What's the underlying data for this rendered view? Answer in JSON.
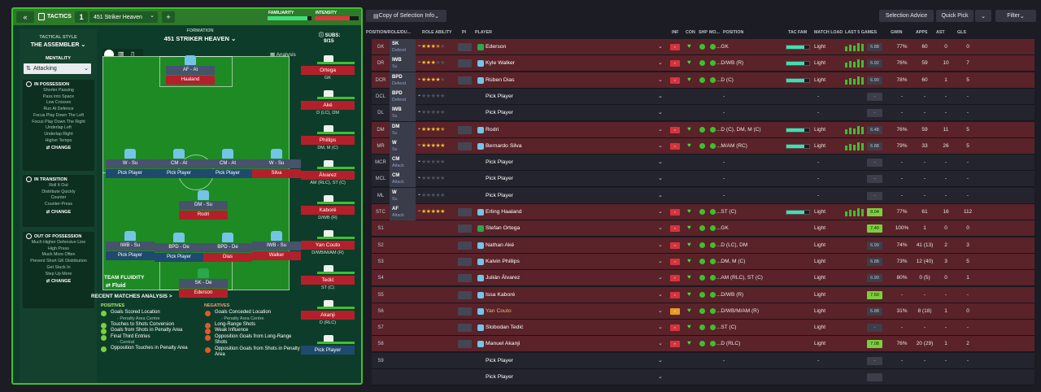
{
  "tactics": {
    "back_label": "«",
    "title": "TACTICS",
    "slot": "1",
    "tactic_name": "451 Striker Heaven",
    "add": "+",
    "familiarity_label": "FAMILIARITY",
    "intensity_label": "INTENSITY",
    "familiarity_pct": 0.9,
    "intensity_pct": 0.8
  },
  "sidebar": {
    "style_label": "TACTICAL STYLE",
    "style_name": "THE ASSEMBLER",
    "mentality_label": "MENTALITY",
    "mentality_value": "Attacking",
    "in_possession_label": "IN POSSESSION",
    "in_possession_items": [
      "Shorter Passing",
      "Pass into Space",
      "Low Crosses",
      "Run At Defence",
      "Focus Play Down The Left",
      "Focus Play Down The Right",
      "Underlap Left",
      "Underlap Right",
      "Higher Tempo"
    ],
    "in_transition_label": "IN TRANSITION",
    "in_transition_items": [
      "Roll It Out",
      "Distribute Quickly",
      "Counter",
      "Counter-Press"
    ],
    "out_possession_label": "OUT OF POSSESSION",
    "out_possession_items": [
      "Much Higher Defensive Line",
      "High Press",
      "Much More Often",
      "Prevent Short GK Distribution",
      "Get Stuck In",
      "Step Up More"
    ],
    "change_label": "CHANGE"
  },
  "formation": {
    "label": "FORMATION",
    "name": "451 STRIKER HEAVEN",
    "subs_label": "SUBS:",
    "subs_count": "9/15",
    "analysis_label": "Analysis",
    "fluidity_label": "TEAM FLUIDITY",
    "fluidity_value": "Fluid",
    "positions": [
      {
        "role": "AF - At",
        "name": "Haaland"
      },
      {
        "role": "W - Su",
        "name": "Pick Player"
      },
      {
        "role": "CM - At",
        "name": "Pick Player"
      },
      {
        "role": "CM - At",
        "name": "Pick Player"
      },
      {
        "role": "W - Su",
        "name": "Silva"
      },
      {
        "role": "DM - Su",
        "name": "Rodri"
      },
      {
        "role": "IWB - Su",
        "name": "Pick Player"
      },
      {
        "role": "BPD - De",
        "name": "Pick Player"
      },
      {
        "role": "BPD - De",
        "name": "Dias"
      },
      {
        "role": "IWB - Su",
        "name": "Walker"
      },
      {
        "role": "SK - De",
        "name": "Ederson"
      }
    ],
    "subs": [
      {
        "name": "Ortega",
        "pos": "GK"
      },
      {
        "name": "Aké",
        "pos": "D (LC), DM"
      },
      {
        "name": "Phillips",
        "pos": "DM, M (C)"
      },
      {
        "name": "Álvarez",
        "pos": "AM (RLC), ST (C)"
      },
      {
        "name": "Kaboré",
        "pos": "D/WB (R)"
      },
      {
        "name": "Yan Couto",
        "pos": "D/WB/M/AM (R)"
      },
      {
        "name": "Tedić",
        "pos": "ST (C)"
      },
      {
        "name": "Akanji",
        "pos": "D (RLC)"
      },
      {
        "name": "Pick Player",
        "pos": ""
      }
    ]
  },
  "analysis": {
    "title": "RECENT MATCHES ANALYSIS >",
    "positives_label": "POSITIVES",
    "negatives_label": "NEGATIVES",
    "positives": [
      {
        "text": "Goals Scored Location",
        "sub": "- Penalty Area Centre"
      },
      {
        "text": "Touches to Shots Conversion",
        "sub": ""
      },
      {
        "text": "Goals from Shots in Penalty Area",
        "sub": ""
      },
      {
        "text": "Final Third Entries",
        "sub": "- Central"
      },
      {
        "text": "Opposition Touches in Penalty Area",
        "sub": ""
      }
    ],
    "negatives": [
      {
        "text": "Goals Conceded Location",
        "sub": "- Penalty Area Centre"
      },
      {
        "text": "Long-Range Shots",
        "sub": ""
      },
      {
        "text": "Weak Influence",
        "sub": ""
      },
      {
        "text": "Opposition Goals from Long-Range Shots",
        "sub": ""
      },
      {
        "text": "Opposition Goals from Shots in Penalty Area",
        "sub": ""
      }
    ]
  },
  "right": {
    "copy_label": "Copy of Selection Info",
    "advice_label": "Selection Advice",
    "quickpick_label": "Quick Pick",
    "filter_label": "Filter",
    "headers": [
      "POSITION/ROLE/DU...",
      "ROLE ABILITY",
      "PI",
      "PLAYER",
      "INF",
      "CON",
      "SHP",
      "MO...",
      "POSITION",
      "TAC FAM",
      "MATCH LOAD",
      "LAST 5 GAMES",
      "GWIN",
      "APPS",
      "AST",
      "GLS"
    ],
    "rows": [
      {
        "pos": "GK",
        "role": "SK",
        "duty": "Defend",
        "stars": 3.5,
        "player": "Ederson",
        "posv": "...GK",
        "load": "Light",
        "rating": "6.88",
        "gwin": "77%",
        "apps": "60",
        "ast": "0",
        "gls": "0",
        "red": true,
        "gk": true
      },
      {
        "pos": "DR",
        "role": "IWB",
        "duty": "Su",
        "stars": 3,
        "player": "Kyle Walker",
        "posv": "...D/WB (R)",
        "load": "Light",
        "rating": "6.92",
        "gwin": "76%",
        "apps": "59",
        "ast": "10",
        "gls": "7",
        "red": true
      },
      {
        "pos": "DCR",
        "role": "BPD",
        "duty": "Defend",
        "stars": 4,
        "player": "Rúben Dias",
        "posv": "...D (C)",
        "load": "Light",
        "rating": "6.90",
        "gwin": "78%",
        "apps": "60",
        "ast": "1",
        "gls": "5",
        "red": true
      },
      {
        "pos": "DCL",
        "role": "BPD",
        "duty": "Defend",
        "stars": 0,
        "player": "Pick Player",
        "posv": "-",
        "load": "-",
        "rating": "-",
        "gwin": "-",
        "apps": "-",
        "ast": "-",
        "gls": "-",
        "red": false,
        "pick": true
      },
      {
        "pos": "DL",
        "role": "IWB",
        "duty": "Su",
        "stars": 0,
        "player": "Pick Player",
        "posv": "-",
        "load": "-",
        "rating": "-",
        "gwin": "-",
        "apps": "-",
        "ast": "-",
        "gls": "-",
        "red": false,
        "pick": true
      },
      {
        "pos": "DM",
        "role": "DM",
        "duty": "Su",
        "stars": 4.5,
        "player": "Rodri",
        "posv": "...D (C), DM, M (C)",
        "load": "Light",
        "rating": "6.48",
        "gwin": "76%",
        "apps": "59",
        "ast": "11",
        "gls": "5",
        "red": true
      },
      {
        "pos": "MR",
        "role": "W",
        "duty": "Su",
        "stars": 5,
        "player": "Bernardo Silva",
        "posv": "...M/AM (RC)",
        "load": "Light",
        "rating": "6.88",
        "gwin": "79%",
        "apps": "33",
        "ast": "26",
        "gls": "5",
        "red": true
      },
      {
        "pos": "MCR",
        "role": "CM",
        "duty": "Attack",
        "stars": 0,
        "player": "Pick Player",
        "posv": "-",
        "load": "-",
        "rating": "-",
        "gwin": "-",
        "apps": "-",
        "ast": "-",
        "gls": "-",
        "red": false,
        "pick": true
      },
      {
        "pos": "MCL",
        "role": "CM",
        "duty": "Attack",
        "stars": 0,
        "player": "Pick Player",
        "posv": "-",
        "load": "-",
        "rating": "-",
        "gwin": "-",
        "apps": "-",
        "ast": "-",
        "gls": "-",
        "red": false,
        "pick": true
      },
      {
        "pos": "ML",
        "role": "W",
        "duty": "Su",
        "stars": 0,
        "player": "Pick Player",
        "posv": "-",
        "load": "-",
        "rating": "-",
        "gwin": "-",
        "apps": "-",
        "ast": "-",
        "gls": "-",
        "red": false,
        "pick": true
      },
      {
        "pos": "STC",
        "role": "AF",
        "duty": "Attack",
        "stars": 5,
        "player": "Erling Haaland",
        "posv": "...ST (C)",
        "load": "Light",
        "rating": "8.04",
        "gwin": "77%",
        "apps": "61",
        "ast": "16",
        "gls": "112",
        "red": true,
        "good": true
      },
      {
        "pos": "S1",
        "role": "",
        "duty": "",
        "stars": 0,
        "player": "Stefan Ortega",
        "posv": "...GK",
        "load": "Light",
        "rating": "7.40",
        "gwin": "100%",
        "apps": "1",
        "ast": "0",
        "gls": "0",
        "red": true,
        "gk": true,
        "good": true
      },
      {
        "pos": "S2",
        "role": "",
        "duty": "",
        "stars": 0,
        "player": "Nathan Aké",
        "posv": "...D (LC), DM",
        "load": "Light",
        "rating": "6.99",
        "gwin": "74%",
        "apps": "41 (13)",
        "ast": "2",
        "gls": "3",
        "red": true
      },
      {
        "pos": "S3",
        "role": "",
        "duty": "",
        "stars": 0,
        "player": "Kalvin Phillips",
        "posv": "...DM, M (C)",
        "load": "Light",
        "rating": "6.88",
        "gwin": "73%",
        "apps": "12 (40)",
        "ast": "3",
        "gls": "5",
        "red": true
      },
      {
        "pos": "S4",
        "role": "",
        "duty": "",
        "stars": 0,
        "player": "Julián Álvarez",
        "posv": "...AM (RLC), ST (C)",
        "load": "Light",
        "rating": "6.90",
        "gwin": "80%",
        "apps": "0 (5)",
        "ast": "0",
        "gls": "1",
        "red": true
      },
      {
        "pos": "S5",
        "role": "",
        "duty": "",
        "stars": 0,
        "player": "Issa Kaboré",
        "posv": "...D/WB (R)",
        "load": "Light",
        "rating": "7.50",
        "gwin": "-",
        "apps": "-",
        "ast": "-",
        "gls": "-",
        "red": true,
        "good": true
      },
      {
        "pos": "S6",
        "role": "",
        "duty": "",
        "stars": 0,
        "player": "Yan Couto",
        "posv": "...D/WB/M/AM (R)",
        "load": "Light",
        "rating": "6.88",
        "gwin": "31%",
        "apps": "8 (18)",
        "ast": "1",
        "gls": "0",
        "red": true,
        "yel": true
      },
      {
        "pos": "S7",
        "role": "",
        "duty": "",
        "stars": 0,
        "player": "Slobodan Tedić",
        "posv": "...ST (C)",
        "load": "Light",
        "rating": "-",
        "gwin": "-",
        "apps": "-",
        "ast": "-",
        "gls": "-",
        "red": true
      },
      {
        "pos": "S8",
        "role": "",
        "duty": "",
        "stars": 0,
        "player": "Manuel Akanji",
        "posv": "...D (RLC)",
        "load": "Light",
        "rating": "7.08",
        "gwin": "76%",
        "apps": "20 (29)",
        "ast": "1",
        "gls": "2",
        "red": true,
        "good": true
      },
      {
        "pos": "S9",
        "role": "",
        "duty": "",
        "stars": 0,
        "player": "Pick Player",
        "posv": "-",
        "load": "-",
        "rating": "-",
        "gwin": "-",
        "apps": "-",
        "ast": "-",
        "gls": "-",
        "red": false,
        "pick": true
      },
      {
        "pos": "",
        "role": "",
        "duty": "",
        "stars": 0,
        "player": "Pick Player",
        "posv": "",
        "load": "",
        "rating": "",
        "gwin": "",
        "apps": "",
        "ast": "",
        "gls": "",
        "red": false,
        "pick": true
      }
    ]
  }
}
